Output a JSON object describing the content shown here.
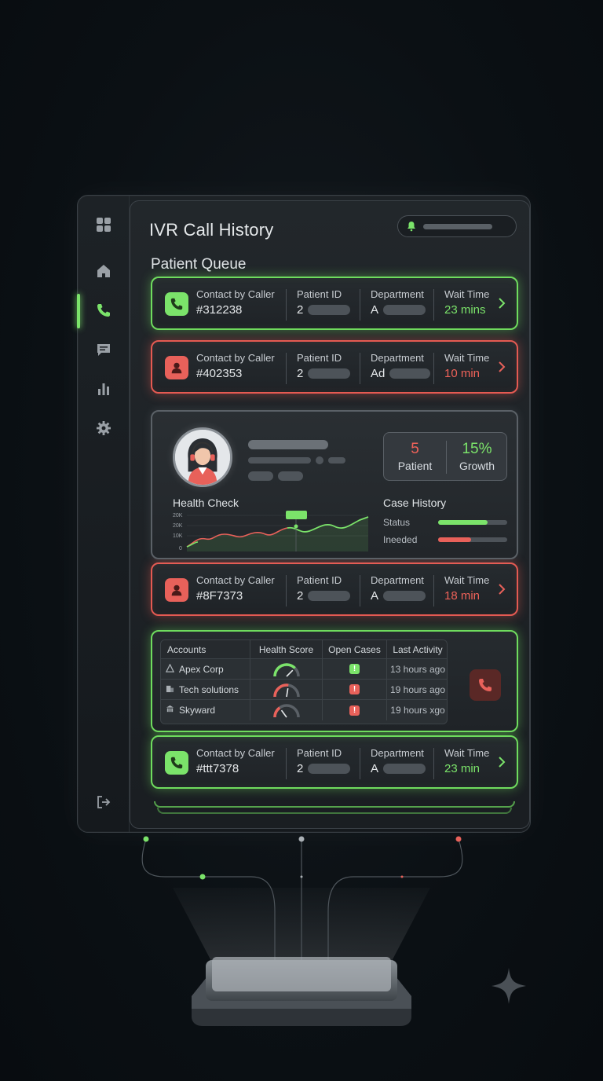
{
  "app": {
    "title": "IVR Call History"
  },
  "queue": {
    "title": "Patient Queue",
    "columns": {
      "contact": "Contact by Caller",
      "patient": "Patient ID",
      "department": "Department",
      "wait": "Wait Time"
    },
    "cards": [
      {
        "status": "green",
        "icon": "phone-icon",
        "contact": "#312238",
        "patient": "2",
        "department": "A",
        "wait": "23 mins"
      },
      {
        "status": "red",
        "icon": "user-icon",
        "contact": "#402353",
        "patient": "2",
        "department": "Ad",
        "wait": "10 min"
      },
      {
        "status": "red",
        "icon": "user-icon",
        "contact": "#8F7373",
        "patient": "2",
        "department": "A",
        "wait": "18 min"
      },
      {
        "status": "green",
        "icon": "phone-icon",
        "contact": "#ttt7378",
        "patient": "2",
        "department": "A",
        "wait": "23 min"
      }
    ]
  },
  "profile": {
    "stats": {
      "patient_value": "5",
      "patient_label": "Patient",
      "growth_value": "15%",
      "growth_label": "Growth"
    },
    "health_check": {
      "title": "Health Check",
      "y_ticks": [
        "20K",
        "20K",
        "10K",
        "0"
      ]
    },
    "case_history": {
      "title": "Case History",
      "rows": [
        {
          "label": "Status",
          "level": 0.72,
          "color": "#7be36a"
        },
        {
          "label": "Ineeded",
          "level": 0.48,
          "color": "#e8615a"
        }
      ]
    }
  },
  "accounts_table": {
    "headers": [
      "Accounts",
      "Health Score",
      "Open Cases",
      "Last Activity"
    ],
    "rows": [
      {
        "icon": "triangle-icon",
        "account": "Apex Corp",
        "score": 0.75,
        "score_color": "#7be36a",
        "case_flag": "!",
        "case_color": "#7be36a",
        "activity": "13 hours ago"
      },
      {
        "icon": "building-icon",
        "account": "Tech solutions",
        "score": 0.55,
        "score_color": "#e8615a",
        "case_flag": "!",
        "case_color": "#e8615a",
        "activity": "19 hours ago"
      },
      {
        "icon": "bank-icon",
        "account": "Skyward",
        "score": 0.3,
        "score_color": "#e8615a",
        "case_flag": "!",
        "case_color": "#e8615a",
        "activity": "19 hours xgo"
      }
    ]
  },
  "colors": {
    "accent_green": "#7be36a",
    "accent_red": "#e8615a"
  }
}
